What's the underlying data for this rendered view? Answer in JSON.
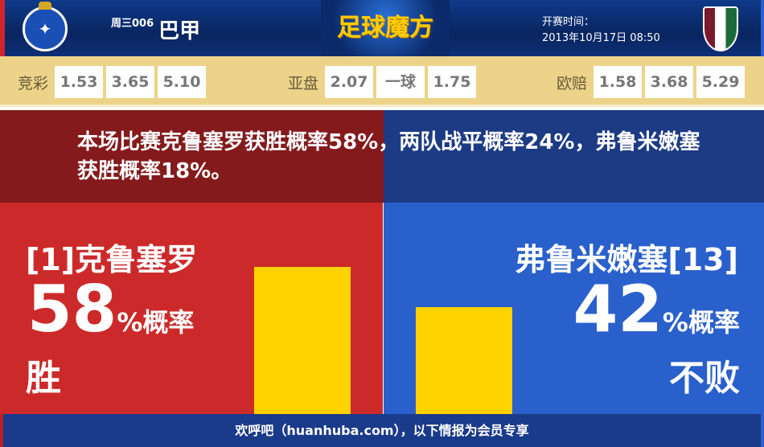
{
  "header": {
    "home_logo": "cruzeiro-crest",
    "match_no": "周三006",
    "league": "巴甲",
    "brand": "足球魔方",
    "time_label": "开赛时间：",
    "time_value": "2013年10月17日 08:50",
    "away_logo": "fluminense-crest"
  },
  "odds": {
    "jingcai": {
      "label": "竞彩",
      "values": [
        "1.53",
        "3.65",
        "5.10"
      ]
    },
    "yapan": {
      "label": "亚盘",
      "values": [
        "2.07",
        "一球",
        "1.75"
      ]
    },
    "oupei": {
      "label": "欧赔",
      "values": [
        "1.58",
        "3.68",
        "5.29"
      ]
    }
  },
  "summary": "本场比赛克鲁塞罗获胜概率58%，两队战平概率24%，弗鲁米嫩塞获胜概率18%。",
  "home": {
    "name": "[1]克鲁塞罗",
    "percent": "58",
    "suffix": "%概率",
    "result": "胜",
    "value": 58,
    "color": "#cc2a2a"
  },
  "away": {
    "name": "弗鲁米嫩塞[13]",
    "percent": "42",
    "suffix": "%概率",
    "result": "不败",
    "value": 42,
    "color": "#2a60cc"
  },
  "bar_color": "#ffd200",
  "footer": "欢呼吧（huanhuba.com），以下情报为会员专享"
}
